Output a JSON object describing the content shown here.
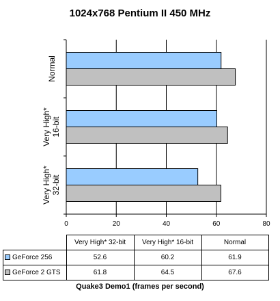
{
  "chart_data": {
    "type": "bar",
    "orientation": "horizontal",
    "title": "1024x768 Pentium II 450 MHz",
    "xlabel": "Quake3 Demo1 (frames per second)",
    "xlim": [
      0,
      80
    ],
    "x_ticks": [
      "0",
      "20",
      "40",
      "60",
      "80"
    ],
    "grid": true,
    "categories": [
      "Very High* 32-bit",
      "Very High* 16-bit",
      "Normal"
    ],
    "axis_categories": [
      {
        "line1": "Very High*",
        "line2": "32-bit"
      },
      {
        "line1": "Very High*",
        "line2": "16-bit"
      },
      {
        "line1": "Normal",
        "line2": ""
      }
    ],
    "series": [
      {
        "name": "GeForce 256",
        "color": "#99ccff",
        "values": [
          52.6,
          60.2,
          61.9
        ],
        "display": [
          "52.6",
          "60.2",
          "61.9"
        ]
      },
      {
        "name": "GeForce 2 GTS",
        "color": "#c0c0c0",
        "values": [
          61.8,
          64.5,
          67.6
        ],
        "display": [
          "61.8",
          "64.5",
          "67.6"
        ]
      }
    ],
    "legend": "data table"
  }
}
